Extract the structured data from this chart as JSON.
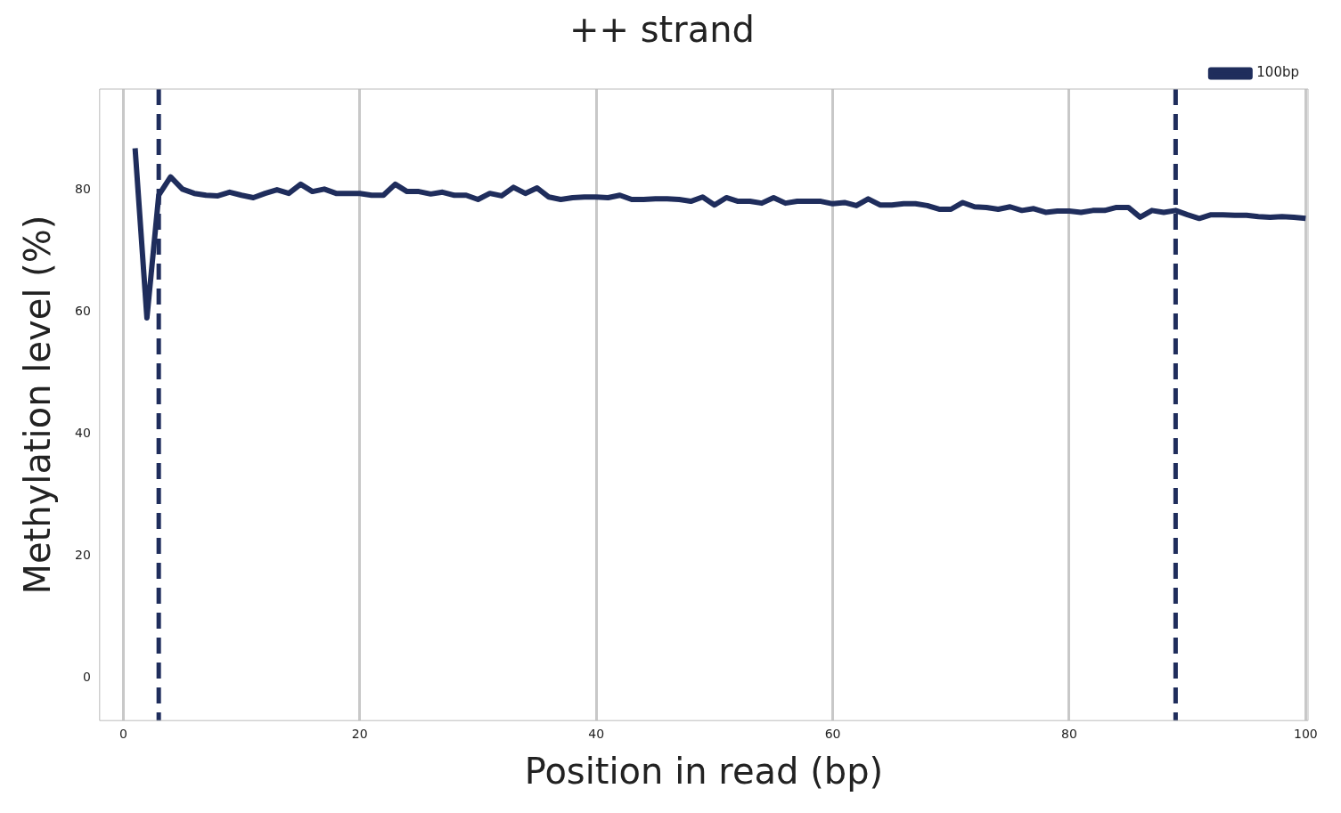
{
  "chart_data": {
    "type": "line",
    "title": "++ strand",
    "xlabel": "Position in read (bp)",
    "ylabel": "Methylation level (%)",
    "x": [
      1,
      2,
      3,
      4,
      5,
      6,
      7,
      8,
      9,
      10,
      11,
      12,
      13,
      14,
      15,
      16,
      17,
      18,
      19,
      20,
      21,
      22,
      23,
      24,
      25,
      26,
      27,
      28,
      29,
      30,
      31,
      32,
      33,
      34,
      35,
      36,
      37,
      38,
      39,
      40,
      41,
      42,
      43,
      44,
      45,
      46,
      47,
      48,
      49,
      50,
      51,
      52,
      53,
      54,
      55,
      56,
      57,
      58,
      59,
      60,
      61,
      62,
      63,
      64,
      65,
      66,
      67,
      68,
      69,
      70,
      71,
      72,
      73,
      74,
      75,
      76,
      77,
      78,
      79,
      80,
      81,
      82,
      83,
      84,
      85,
      86,
      87,
      88,
      89,
      90,
      91,
      92,
      93,
      94,
      95,
      96,
      97,
      98,
      99,
      100
    ],
    "series": [
      {
        "name": "100bp",
        "color": "#1f2d5c",
        "values": [
          86.8,
          59.0,
          79.1,
          82.1,
          80.1,
          79.4,
          79.1,
          79.0,
          79.6,
          79.1,
          78.7,
          79.4,
          80.0,
          79.4,
          80.9,
          79.7,
          80.1,
          79.4,
          79.4,
          79.4,
          79.1,
          79.1,
          80.9,
          79.7,
          79.7,
          79.3,
          79.6,
          79.1,
          79.1,
          78.4,
          79.4,
          79.0,
          80.4,
          79.4,
          80.3,
          78.8,
          78.4,
          78.7,
          78.8,
          78.8,
          78.7,
          79.1,
          78.4,
          78.4,
          78.5,
          78.5,
          78.4,
          78.1,
          78.8,
          77.5,
          78.7,
          78.1,
          78.1,
          77.8,
          78.7,
          77.8,
          78.1,
          78.1,
          78.1,
          77.7,
          77.9,
          77.4,
          78.5,
          77.5,
          77.5,
          77.7,
          77.7,
          77.4,
          76.8,
          76.8,
          77.9,
          77.2,
          77.1,
          76.8,
          77.2,
          76.6,
          76.9,
          76.3,
          76.5,
          76.5,
          76.3,
          76.6,
          76.6,
          77.1,
          77.1,
          75.5,
          76.6,
          76.3,
          76.6,
          75.9,
          75.3,
          75.9,
          75.9,
          75.8,
          75.8,
          75.6,
          75.5,
          75.6,
          75.5,
          75.3
        ]
      }
    ],
    "xlim": [
      -2,
      100.2
    ],
    "ylim": [
      -7,
      96.5
    ],
    "xticks": [
      0,
      20,
      40,
      60,
      80,
      100
    ],
    "yticks": [
      0,
      20,
      40,
      60,
      80
    ],
    "ref_lines": [
      {
        "axis": "x",
        "value": 3,
        "color": "#1f2d5c",
        "line_style": "dashed"
      },
      {
        "axis": "x",
        "value": 89,
        "color": "#1f2d5c",
        "line_style": "dashed"
      }
    ],
    "grid": "x",
    "legend": "top right",
    "marker": "none",
    "line_style": "solid"
  }
}
